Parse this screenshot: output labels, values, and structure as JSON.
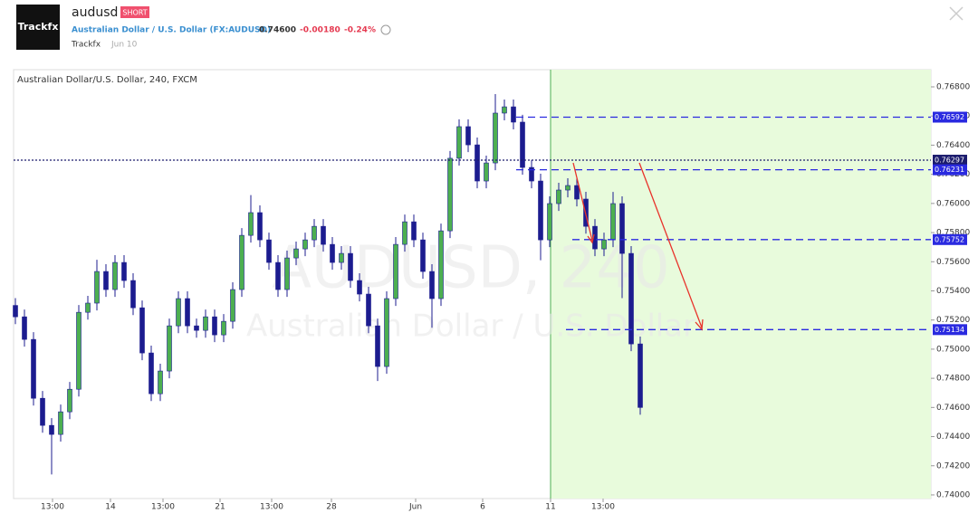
{
  "header": {
    "logo": "Trackfx",
    "symbol": "audusd",
    "badge": "SHORT",
    "instrument": "Australian Dollar / U.S. Dollar (FX:AUDUSD)",
    "price": "0.74600",
    "change": "-0.00180",
    "change_pct": "-0.24%",
    "author": "Trackfx",
    "date": "Jun 10"
  },
  "chart_data": {
    "type": "candlestick",
    "title": "Australian Dollar/U.S. Dollar, 240, FXCM",
    "watermark": [
      "AUDUSD, 240",
      "Australian Dollar / U.S. Dollar"
    ],
    "up_color": "#4caf50",
    "down_color": "#1c1c8f",
    "zone_color": "#e8fbdc",
    "open": [
      0.753,
      0.75222,
      0.75067,
      0.74663,
      0.74477,
      0.74415,
      0.7457,
      0.74725,
      0.75253,
      0.75316,
      0.75533,
      0.75409,
      0.75595,
      0.75471,
      0.75284,
      0.74974,
      0.74694,
      0.7485,
      0.7516,
      0.75347,
      0.7516,
      0.75129,
      0.75222,
      0.75098,
      0.75191,
      0.75409,
      0.75781,
      0.75937,
      0.7575,
      0.75595,
      0.75409,
      0.75626,
      0.75688,
      0.7575,
      0.75843,
      0.75719,
      0.75595,
      0.75657,
      0.75471,
      0.75378,
      0.7516,
      0.74881,
      0.75347,
      0.75719,
      0.75874,
      0.7575,
      0.75533,
      0.75347,
      0.75812,
      0.7631,
      0.76527,
      0.76402,
      0.76154,
      0.76278,
      0.7662,
      0.76663,
      0.76558,
      0.76247,
      0.76154,
      0.7575,
      0.75999,
      0.76092,
      0.76123,
      0.7603,
      0.75843,
      0.75688,
      0.7575,
      0.75999,
      0.75657,
      0.75036
    ],
    "high": [
      0.7535,
      0.75272,
      0.75117,
      0.74713,
      0.74527,
      0.7462,
      0.74775,
      0.75303,
      0.75366,
      0.75613,
      0.75583,
      0.75645,
      0.75645,
      0.75521,
      0.75334,
      0.75024,
      0.749,
      0.7521,
      0.75397,
      0.75397,
      0.7521,
      0.75272,
      0.75272,
      0.75241,
      0.75459,
      0.75831,
      0.76057,
      0.75987,
      0.758,
      0.75645,
      0.75676,
      0.75738,
      0.758,
      0.75893,
      0.75893,
      0.75769,
      0.75707,
      0.75707,
      0.75521,
      0.75428,
      0.7521,
      0.75397,
      0.75769,
      0.75924,
      0.75924,
      0.758,
      0.75583,
      0.75862,
      0.7636,
      0.76577,
      0.76577,
      0.76452,
      0.76328,
      0.7675,
      0.76713,
      0.76713,
      0.76608,
      0.76297,
      0.76204,
      0.76049,
      0.76142,
      0.76173,
      0.76173,
      0.7608,
      0.75893,
      0.758,
      0.76079,
      0.76049,
      0.75707,
      0.75086
    ],
    "low": [
      0.75172,
      0.75017,
      0.74613,
      0.74427,
      0.7414,
      0.74365,
      0.7452,
      0.74675,
      0.75203,
      0.75266,
      0.75359,
      0.75359,
      0.75421,
      0.75234,
      0.74924,
      0.74644,
      0.74644,
      0.748,
      0.7511,
      0.7511,
      0.75079,
      0.75079,
      0.75048,
      0.75048,
      0.75141,
      0.75359,
      0.75731,
      0.757,
      0.75545,
      0.75359,
      0.75359,
      0.75576,
      0.75638,
      0.757,
      0.75669,
      0.75545,
      0.75545,
      0.75421,
      0.75328,
      0.7511,
      0.74781,
      0.74831,
      0.75297,
      0.75669,
      0.757,
      0.75483,
      0.75147,
      0.75297,
      0.75762,
      0.7626,
      0.76352,
      0.76104,
      0.76104,
      0.76228,
      0.7657,
      0.76508,
      0.76197,
      0.76104,
      0.7561,
      0.757,
      0.75949,
      0.76042,
      0.7598,
      0.75793,
      0.75638,
      0.75638,
      0.757,
      0.7535,
      0.74986,
      0.7455
    ],
    "close": [
      0.75222,
      0.75067,
      0.74663,
      0.74477,
      0.74415,
      0.7457,
      0.74725,
      0.75253,
      0.75316,
      0.75533,
      0.75409,
      0.75595,
      0.75471,
      0.75284,
      0.74974,
      0.74694,
      0.7485,
      0.7516,
      0.75347,
      0.7516,
      0.75129,
      0.75222,
      0.75098,
      0.75191,
      0.75409,
      0.75781,
      0.75937,
      0.7575,
      0.75595,
      0.75409,
      0.75626,
      0.75688,
      0.7575,
      0.75843,
      0.75719,
      0.75595,
      0.75657,
      0.75471,
      0.75378,
      0.7516,
      0.74881,
      0.75347,
      0.75719,
      0.75874,
      0.7575,
      0.75533,
      0.75347,
      0.75812,
      0.7631,
      0.76527,
      0.76402,
      0.76154,
      0.76278,
      0.7662,
      0.76663,
      0.76558,
      0.76247,
      0.76154,
      0.7575,
      0.75999,
      0.76092,
      0.76123,
      0.7603,
      0.75843,
      0.75688,
      0.7575,
      0.75999,
      0.75657,
      0.75036,
      0.746
    ],
    "levels": [
      {
        "value": 0.76592,
        "color": "#2a2ae0",
        "dash": "8,5"
      },
      {
        "value": 0.76297,
        "color": "#1c1c6e",
        "dash": "2,2"
      },
      {
        "value": 0.76231,
        "color": "#2a2ae0",
        "dash": "8,5"
      },
      {
        "value": 0.75752,
        "color": "#2a2ae0",
        "dash": "8,5"
      },
      {
        "value": 0.75134,
        "color": "#2a2ae0",
        "dash": "8,5"
      }
    ],
    "xlim": [
      -0.2,
      101.1
    ],
    "xticks": [
      {
        "value": 4.1,
        "label": "13:00"
      },
      {
        "value": 10.5,
        "label": "14"
      },
      {
        "value": 16.3,
        "label": "13:00"
      },
      {
        "value": 22.6,
        "label": "21"
      },
      {
        "value": 28.3,
        "label": "13:00"
      },
      {
        "value": 34.9,
        "label": "28"
      },
      {
        "value": 44.2,
        "label": "Jun"
      },
      {
        "value": 51.6,
        "label": "6"
      },
      {
        "value": 59.1,
        "label": "11"
      },
      {
        "value": 64.9,
        "label": "13:00"
      }
    ],
    "ylim": [
      0.73975,
      0.76918
    ],
    "yticks": [
      {
        "value": 0.74,
        "label": "0.74000"
      },
      {
        "value": 0.742,
        "label": "0.74200"
      },
      {
        "value": 0.744,
        "label": "0.74400"
      },
      {
        "value": 0.746,
        "label": "0.74600"
      },
      {
        "value": 0.748,
        "label": "0.74800"
      },
      {
        "value": 0.75,
        "label": "0.75000"
      },
      {
        "value": 0.752,
        "label": "0.75200"
      },
      {
        "value": 0.754,
        "label": "0.75400"
      },
      {
        "value": 0.756,
        "label": "0.75600"
      },
      {
        "value": 0.758,
        "label": "0.75800"
      },
      {
        "value": 0.76,
        "label": "0.76000"
      },
      {
        "value": 0.762,
        "label": "0.76200"
      },
      {
        "value": 0.764,
        "label": "0.76400"
      },
      {
        "value": 0.766,
        "label": "0.76600"
      },
      {
        "value": 0.768,
        "label": "0.76800"
      }
    ]
  }
}
